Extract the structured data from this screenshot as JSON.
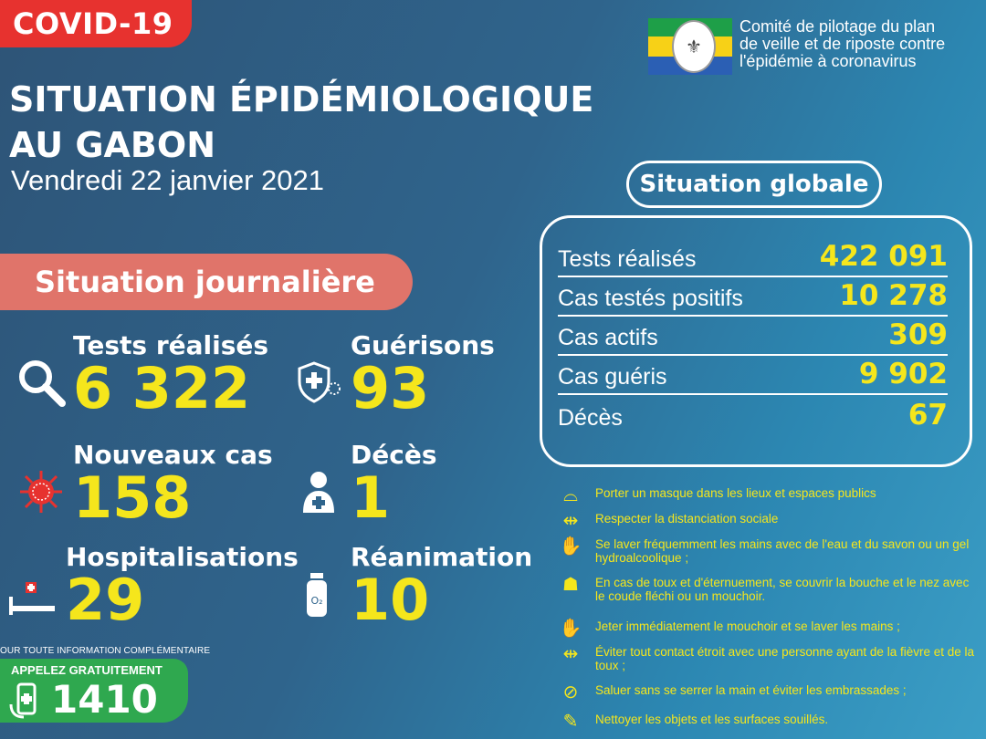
{
  "header": {
    "badge": "COVID-19",
    "title_line1": "SITUATION ÉPIDÉMIOLOGIQUE",
    "title_line2": "AU GABON",
    "date": "Vendredi 22 janvier 2021",
    "committee": [
      "Comité de pilotage du plan",
      "de veille et de riposte contre",
      "l'épidémie à coronavirus"
    ]
  },
  "daily": {
    "heading": "Situation journalière",
    "tests": {
      "label": "Tests réalisés",
      "value": "6 322",
      "icon": "magnifier-icon"
    },
    "gueri": {
      "label": "Guérisons",
      "value": "93",
      "icon": "shield-cross-icon"
    },
    "cases": {
      "label": "Nouveaux cas",
      "value": "158",
      "icon": "virus-icon"
    },
    "deaths": {
      "label": "Décès",
      "value": "1",
      "icon": "person-cross-icon"
    },
    "hosp": {
      "label": "Hospitalisations",
      "value": "29",
      "icon": "hospital-bed-icon"
    },
    "rea": {
      "label": "Réanimation",
      "value": "10",
      "icon": "oxygen-tank-icon"
    }
  },
  "global": {
    "heading": "Situation globale",
    "rows": [
      {
        "label": "Tests réalisés",
        "value": "422 091"
      },
      {
        "label": "Cas testés positifs",
        "value": "10 278"
      },
      {
        "label": "Cas actifs",
        "value": "309"
      },
      {
        "label": "Cas guéris",
        "value": "9 902"
      },
      {
        "label": "Décès",
        "value": "67"
      }
    ]
  },
  "advice": [
    "Porter un masque dans les lieux et espaces publics",
    "Respecter la distanciation sociale",
    "Se laver fréquemment les mains avec de l'eau et du savon ou un gel hydroalcoolique ;",
    "En cas de toux et d'éternuement, se couvrir la bouche et le nez avec le coude fléchi ou un mouchoir.",
    "Jeter immédiatement le mouchoir et se laver les mains ;",
    "Éviter tout contact étroit avec une personne ayant de la fièvre et de la toux ;",
    "Saluer sans se serrer la main et éviter les embrassades ;",
    "Nettoyer les objets et les surfaces souillés."
  ],
  "footer": {
    "info": "OUR TOUTE INFORMATION COMPLÉMENTAIRE",
    "call": "APPELEZ GRATUITEMENT",
    "number": "1410"
  },
  "colors": {
    "accent_yellow": "#f5e61c",
    "badge_red": "#e7322f",
    "salmon": "#e0746a",
    "green": "#2fa84f"
  }
}
